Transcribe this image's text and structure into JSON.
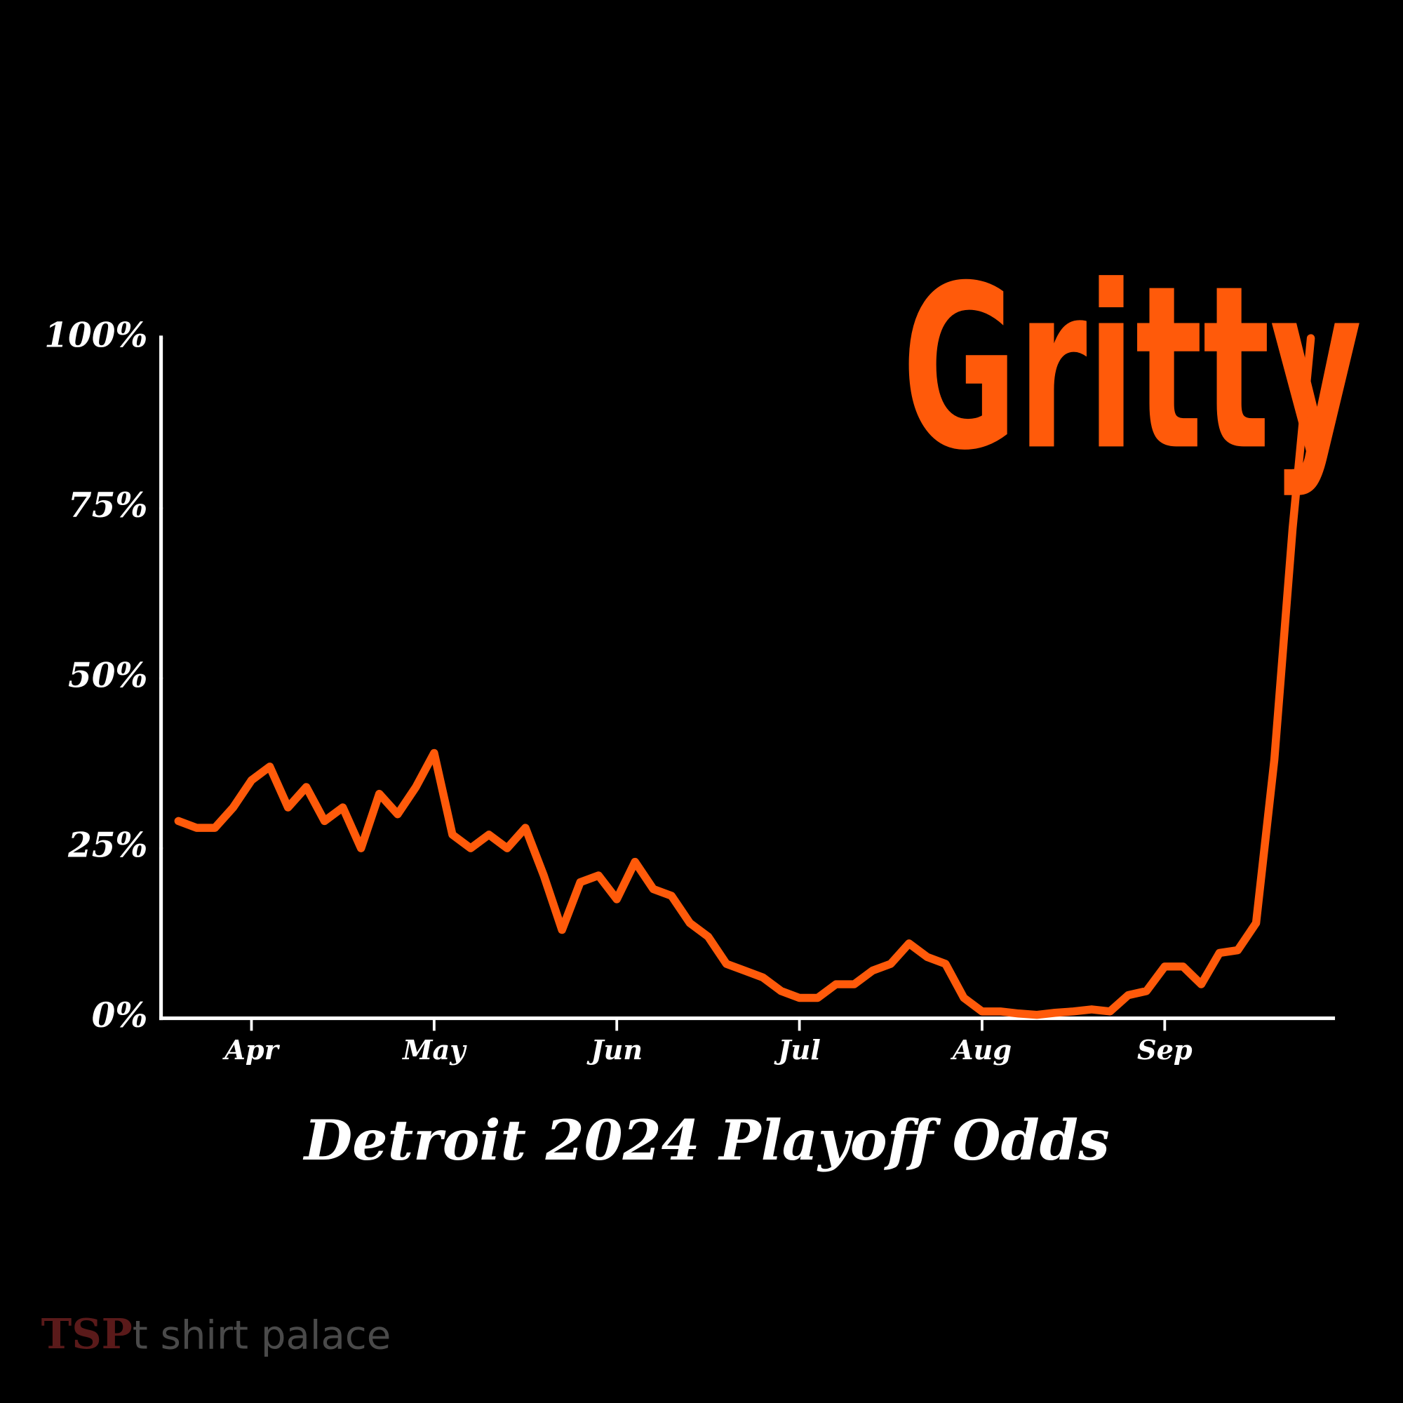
{
  "chart_data": {
    "type": "line",
    "title": "Detroit 2024 Playoff Odds",
    "annotation": "Gritty",
    "categories": [
      null,
      null,
      null,
      null,
      "Apr",
      null,
      null,
      null,
      null,
      null,
      null,
      null,
      null,
      null,
      "May",
      null,
      null,
      null,
      null,
      null,
      null,
      null,
      null,
      null,
      "Jun",
      null,
      null,
      null,
      null,
      null,
      null,
      null,
      null,
      null,
      "Jul",
      null,
      null,
      null,
      null,
      null,
      null,
      null,
      null,
      null,
      "Aug",
      null,
      null,
      null,
      null,
      null,
      null,
      null,
      null,
      null,
      "Sep",
      null,
      null,
      null,
      null,
      null,
      null,
      null,
      null
    ],
    "series": [
      {
        "color": "#ff5a0a",
        "values": [
          29,
          28,
          28,
          31,
          35,
          37,
          31,
          34,
          29,
          31,
          25,
          33,
          30,
          34,
          39,
          27,
          25,
          27,
          25,
          28,
          21,
          13,
          20,
          21,
          17.5,
          23,
          19,
          18,
          14,
          12,
          8,
          7,
          6,
          4,
          3,
          3,
          5,
          5,
          7,
          8,
          11,
          9,
          8,
          3,
          1,
          1,
          0.7,
          0.5,
          0.8,
          1,
          1.3,
          1,
          3.4,
          4,
          7.6,
          7.6,
          5,
          9.6,
          10,
          14,
          38,
          72,
          100
        ]
      }
    ],
    "ylim": [
      0,
      100
    ],
    "yticks": [
      {
        "value": 0,
        "label": "0%"
      },
      {
        "value": 25,
        "label": "25%"
      },
      {
        "value": 50,
        "label": "50%"
      },
      {
        "value": 75,
        "label": "75%"
      },
      {
        "value": 100,
        "label": "100%"
      }
    ],
    "grid": false
  },
  "watermark": {
    "logo": "TSP",
    "text": "t shirt palace"
  }
}
